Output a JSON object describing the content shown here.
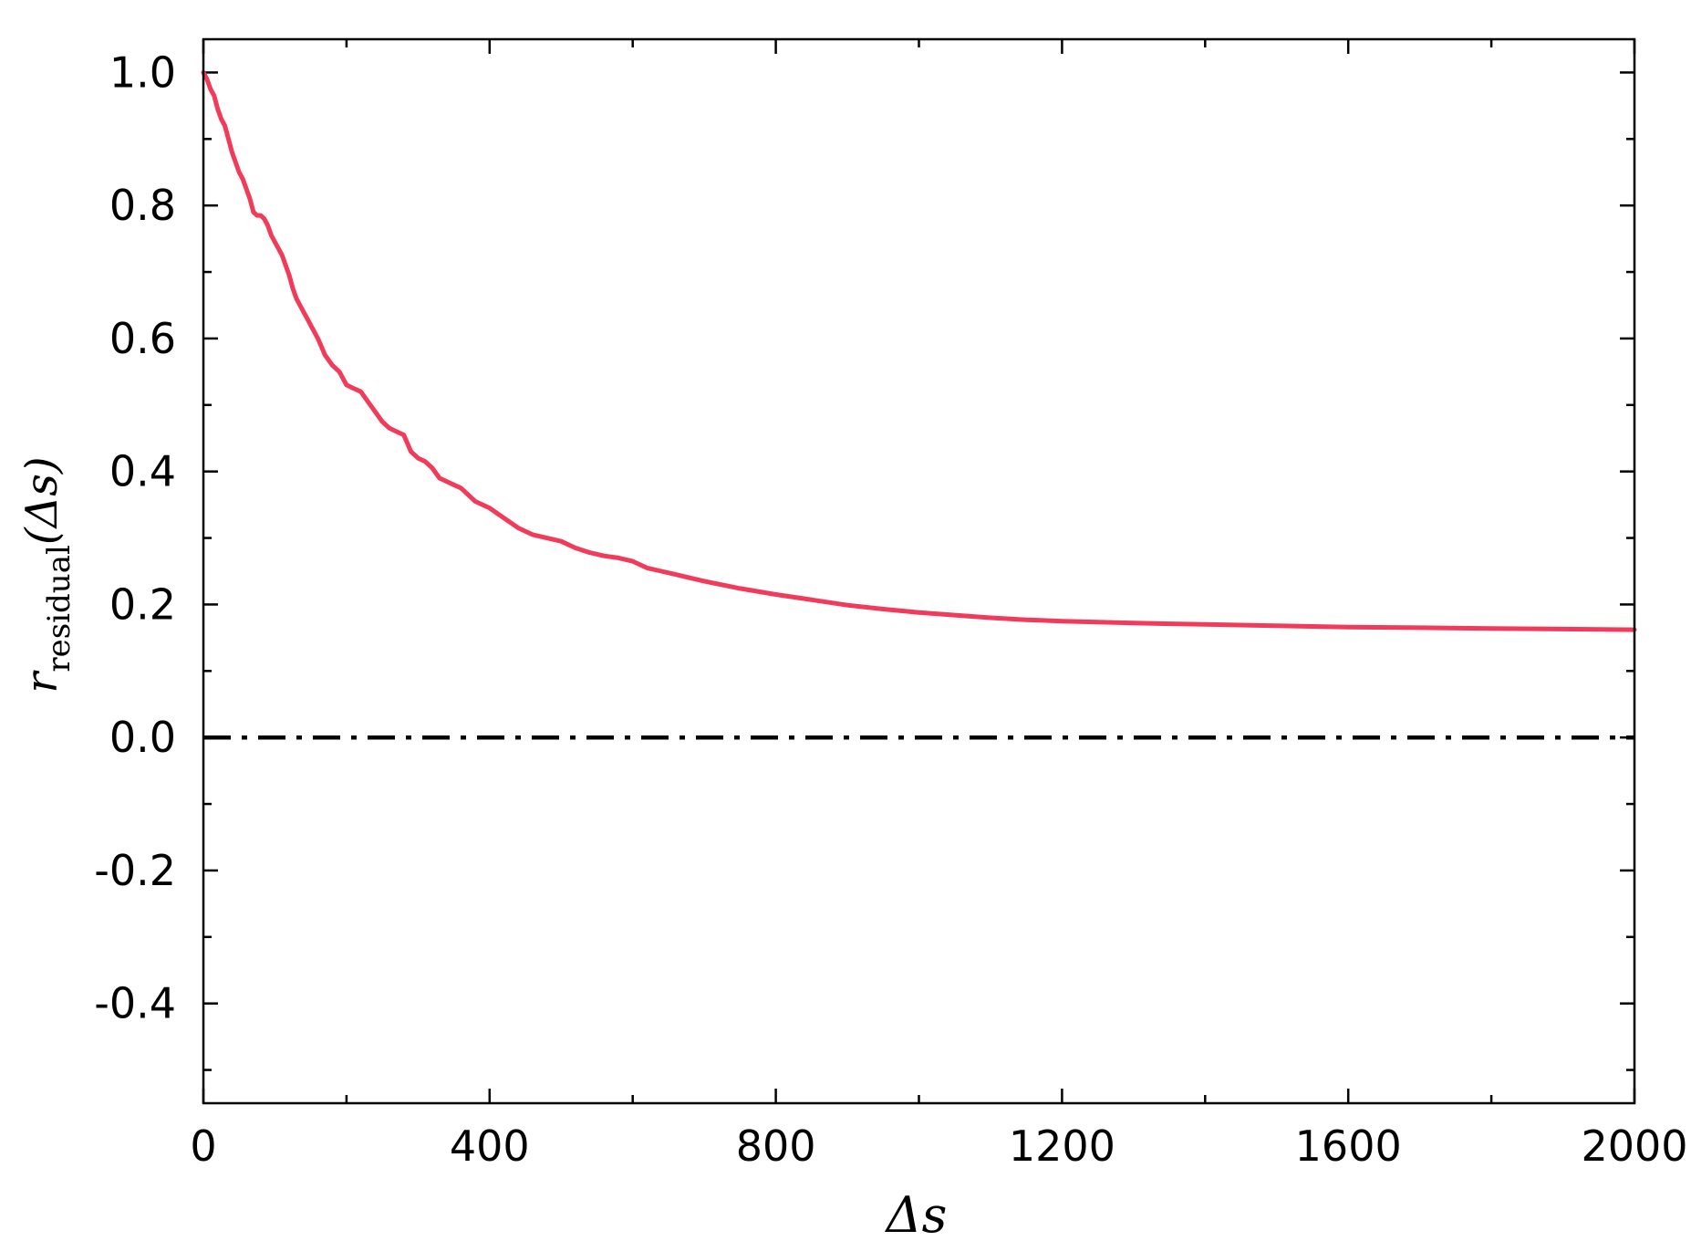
{
  "chart_data": {
    "type": "line",
    "title": "",
    "xlabel": "Δs",
    "ylabel": {
      "main": "r",
      "subscript": "residual",
      "argument": "(Δs)"
    },
    "xlim": [
      0,
      2000
    ],
    "ylim": [
      -0.55,
      1.05
    ],
    "x_ticks": [
      {
        "value": 0,
        "label": "0"
      },
      {
        "value": 400,
        "label": "400"
      },
      {
        "value": 800,
        "label": "800"
      },
      {
        "value": 1200,
        "label": "1200"
      },
      {
        "value": 1600,
        "label": "1600"
      },
      {
        "value": 2000,
        "label": "2000"
      }
    ],
    "x_minor_ticks": [
      200,
      600,
      1000,
      1400,
      1800
    ],
    "y_ticks": [
      {
        "value": 1.0,
        "label": "1.0"
      },
      {
        "value": 0.8,
        "label": "0.8"
      },
      {
        "value": 0.6,
        "label": "0.6"
      },
      {
        "value": 0.4,
        "label": "0.4"
      },
      {
        "value": 0.2,
        "label": "0.2"
      },
      {
        "value": 0.0,
        "label": "0.0"
      },
      {
        "value": -0.2,
        "label": "-0.2"
      },
      {
        "value": -0.4,
        "label": "-0.4"
      }
    ],
    "y_minor_ticks": [
      0.9,
      0.7,
      0.5,
      0.3,
      0.1,
      -0.1,
      -0.3,
      -0.5
    ],
    "grid": false,
    "series": [
      {
        "color": "#f23a5a",
        "style": "solid",
        "x": [
          0,
          5,
          10,
          15,
          20,
          25,
          30,
          35,
          40,
          45,
          50,
          55,
          60,
          65,
          70,
          75,
          80,
          85,
          90,
          95,
          100,
          105,
          110,
          115,
          120,
          125,
          130,
          135,
          140,
          145,
          150,
          160,
          170,
          180,
          190,
          200,
          210,
          220,
          230,
          240,
          250,
          260,
          270,
          280,
          290,
          300,
          310,
          320,
          330,
          340,
          350,
          360,
          370,
          380,
          390,
          400,
          420,
          440,
          460,
          480,
          500,
          520,
          540,
          560,
          580,
          600,
          620,
          640,
          660,
          680,
          700,
          750,
          800,
          850,
          900,
          950,
          1000,
          1050,
          1100,
          1150,
          1200,
          1300,
          1400,
          1500,
          1600,
          1700,
          1800,
          1900,
          2000
        ],
        "y": [
          1.0,
          0.99,
          0.975,
          0.965,
          0.945,
          0.93,
          0.92,
          0.9,
          0.88,
          0.865,
          0.85,
          0.84,
          0.825,
          0.81,
          0.79,
          0.785,
          0.785,
          0.78,
          0.77,
          0.755,
          0.745,
          0.735,
          0.725,
          0.71,
          0.695,
          0.675,
          0.66,
          0.65,
          0.64,
          0.63,
          0.62,
          0.6,
          0.575,
          0.56,
          0.55,
          0.53,
          0.525,
          0.52,
          0.505,
          0.49,
          0.475,
          0.465,
          0.46,
          0.455,
          0.43,
          0.42,
          0.415,
          0.405,
          0.39,
          0.385,
          0.38,
          0.375,
          0.365,
          0.355,
          0.35,
          0.345,
          0.33,
          0.315,
          0.305,
          0.3,
          0.295,
          0.285,
          0.278,
          0.273,
          0.27,
          0.265,
          0.255,
          0.25,
          0.245,
          0.24,
          0.235,
          0.224,
          0.215,
          0.207,
          0.199,
          0.193,
          0.188,
          0.184,
          0.18,
          0.177,
          0.175,
          0.172,
          0.17,
          0.168,
          0.166,
          0.165,
          0.164,
          0.163,
          0.162
        ]
      }
    ],
    "reference_line": {
      "y": 0.0,
      "color": "#000000",
      "style": "dash-dot"
    }
  }
}
